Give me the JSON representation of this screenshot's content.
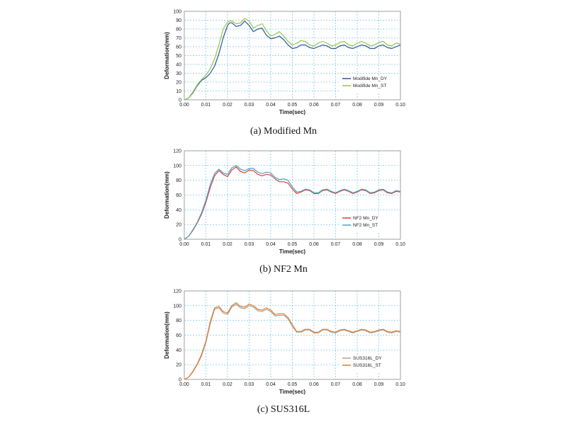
{
  "chart_data": [
    {
      "type": "line",
      "caption": "(a)  Modified  Mn",
      "xlabel": "Time(sec)",
      "ylabel": "Deformation(mm)",
      "xlim": [
        0,
        0.1
      ],
      "ylim": [
        0,
        100
      ],
      "xticks": [
        "0.00",
        "0.01",
        "0.02",
        "0.03",
        "0.04",
        "0.05",
        "0.06",
        "0.07",
        "0.08",
        "0.09",
        "0.10"
      ],
      "yticks": [
        "0",
        "10",
        "20",
        "30",
        "40",
        "50",
        "60",
        "70",
        "80",
        "90",
        "100"
      ],
      "grid": true,
      "legend": "bottom-right",
      "colors": [
        "#2f5597",
        "#92c44a"
      ],
      "series": [
        {
          "name": "Modifide Mn_DY",
          "color": "#2f5597",
          "x": [
            0,
            0.002,
            0.004,
            0.006,
            0.008,
            0.01,
            0.012,
            0.014,
            0.016,
            0.018,
            0.02,
            0.021,
            0.022,
            0.024,
            0.026,
            0.028,
            0.03,
            0.032,
            0.034,
            0.036,
            0.038,
            0.04,
            0.042,
            0.044,
            0.046,
            0.048,
            0.05,
            0.052,
            0.054,
            0.056,
            0.058,
            0.06,
            0.062,
            0.064,
            0.066,
            0.068,
            0.07,
            0.072,
            0.074,
            0.076,
            0.078,
            0.08,
            0.082,
            0.084,
            0.086,
            0.088,
            0.09,
            0.092,
            0.094,
            0.096,
            0.098,
            0.1
          ],
          "y": [
            0,
            2,
            8,
            16,
            22,
            25,
            30,
            38,
            52,
            70,
            84,
            87,
            87,
            83,
            84,
            89,
            84,
            77,
            80,
            81,
            73,
            69,
            70,
            72,
            68,
            62,
            58,
            59,
            62,
            62,
            59,
            58,
            60,
            62,
            61,
            58,
            58,
            61,
            62,
            59,
            58,
            60,
            62,
            61,
            58,
            58,
            61,
            62,
            59,
            58,
            60,
            62
          ]
        },
        {
          "name": "Modifide Mn_ST",
          "color": "#92c44a",
          "x": [
            0,
            0.002,
            0.004,
            0.006,
            0.008,
            0.01,
            0.012,
            0.014,
            0.016,
            0.018,
            0.02,
            0.021,
            0.022,
            0.024,
            0.026,
            0.028,
            0.03,
            0.032,
            0.034,
            0.036,
            0.038,
            0.04,
            0.042,
            0.044,
            0.046,
            0.048,
            0.05,
            0.052,
            0.054,
            0.056,
            0.058,
            0.06,
            0.062,
            0.064,
            0.066,
            0.068,
            0.07,
            0.072,
            0.074,
            0.076,
            0.078,
            0.08,
            0.082,
            0.084,
            0.086,
            0.088,
            0.09,
            0.092,
            0.094,
            0.096,
            0.098,
            0.1
          ],
          "y": [
            0,
            2,
            9,
            17,
            23,
            28,
            35,
            46,
            62,
            80,
            88,
            89,
            89,
            86,
            87,
            92,
            89,
            81,
            84,
            86,
            78,
            72,
            74,
            77,
            72,
            66,
            62,
            64,
            67,
            66,
            62,
            61,
            64,
            66,
            64,
            61,
            62,
            65,
            66,
            62,
            61,
            64,
            66,
            64,
            61,
            62,
            65,
            66,
            62,
            61,
            64,
            63
          ]
        }
      ]
    },
    {
      "type": "line",
      "caption": "(b)  NF2  Mn",
      "xlabel": "Time(sec)",
      "ylabel": "Deformation(mm)",
      "xlim": [
        0,
        0.1
      ],
      "ylim": [
        0,
        120
      ],
      "xticks": [
        "0.00",
        "0.01",
        "0.02",
        "0.03",
        "0.04",
        "0.05",
        "0.06",
        "0.07",
        "0.08",
        "0.09",
        "0.10"
      ],
      "yticks": [
        "0",
        "20",
        "40",
        "60",
        "80",
        "100",
        "120"
      ],
      "grid": true,
      "legend": "bottom-right",
      "colors": [
        "#d9413d",
        "#4ba3c7"
      ],
      "series": [
        {
          "name": "NF2 Mn_DY",
          "color": "#d9413d",
          "x": [
            0,
            0.002,
            0.004,
            0.006,
            0.008,
            0.01,
            0.012,
            0.014,
            0.016,
            0.018,
            0.02,
            0.022,
            0.024,
            0.026,
            0.028,
            0.03,
            0.032,
            0.034,
            0.036,
            0.038,
            0.04,
            0.042,
            0.044,
            0.046,
            0.048,
            0.05,
            0.052,
            0.054,
            0.056,
            0.058,
            0.06,
            0.062,
            0.064,
            0.066,
            0.068,
            0.07,
            0.072,
            0.074,
            0.076,
            0.078,
            0.08,
            0.082,
            0.084,
            0.086,
            0.088,
            0.09,
            0.092,
            0.094,
            0.096,
            0.098,
            0.1
          ],
          "y": [
            0,
            4,
            12,
            22,
            34,
            50,
            70,
            86,
            93,
            88,
            85,
            94,
            98,
            92,
            90,
            94,
            93,
            88,
            86,
            88,
            87,
            82,
            78,
            78,
            76,
            68,
            62,
            64,
            67,
            66,
            62,
            62,
            66,
            67,
            64,
            62,
            65,
            67,
            65,
            62,
            64,
            67,
            66,
            62,
            63,
            66,
            67,
            63,
            62,
            65,
            64
          ]
        },
        {
          "name": "NF2 Mn_ST",
          "color": "#4ba3c7",
          "x": [
            0,
            0.002,
            0.004,
            0.006,
            0.008,
            0.01,
            0.012,
            0.014,
            0.016,
            0.018,
            0.02,
            0.022,
            0.024,
            0.026,
            0.028,
            0.03,
            0.032,
            0.034,
            0.036,
            0.038,
            0.04,
            0.042,
            0.044,
            0.046,
            0.048,
            0.05,
            0.052,
            0.054,
            0.056,
            0.058,
            0.06,
            0.062,
            0.064,
            0.066,
            0.068,
            0.07,
            0.072,
            0.074,
            0.076,
            0.078,
            0.08,
            0.082,
            0.084,
            0.086,
            0.088,
            0.09,
            0.092,
            0.094,
            0.096,
            0.098,
            0.1
          ],
          "y": [
            0,
            4,
            13,
            23,
            36,
            53,
            74,
            89,
            95,
            90,
            88,
            97,
            100,
            95,
            93,
            96,
            96,
            91,
            89,
            91,
            90,
            84,
            81,
            82,
            80,
            71,
            64,
            65,
            68,
            67,
            63,
            63,
            67,
            68,
            65,
            63,
            66,
            68,
            66,
            63,
            65,
            68,
            67,
            63,
            64,
            67,
            68,
            64,
            63,
            66,
            65
          ]
        }
      ]
    },
    {
      "type": "line",
      "caption": "(c)  SUS316L",
      "xlabel": "Time(sec)",
      "ylabel": "Deformation(mm)",
      "xlim": [
        0,
        0.1
      ],
      "ylim": [
        0,
        120
      ],
      "xticks": [
        "0.00",
        "0.01",
        "0.02",
        "0.03",
        "0.04",
        "0.05",
        "0.06",
        "0.07",
        "0.08",
        "0.09",
        "0.10"
      ],
      "yticks": [
        "0",
        "20",
        "40",
        "60",
        "80",
        "100",
        "120"
      ],
      "grid": true,
      "legend": "bottom-right",
      "colors": [
        "#a6a6a6",
        "#e07b2a"
      ],
      "series": [
        {
          "name": "SUS316L_DY",
          "color": "#a6a6a6",
          "x": [
            0,
            0.002,
            0.004,
            0.006,
            0.008,
            0.01,
            0.012,
            0.014,
            0.016,
            0.018,
            0.02,
            0.022,
            0.024,
            0.026,
            0.028,
            0.03,
            0.032,
            0.034,
            0.036,
            0.038,
            0.04,
            0.042,
            0.044,
            0.046,
            0.048,
            0.05,
            0.052,
            0.054,
            0.056,
            0.058,
            0.06,
            0.062,
            0.064,
            0.066,
            0.068,
            0.07,
            0.072,
            0.074,
            0.076,
            0.078,
            0.08,
            0.082,
            0.084,
            0.086,
            0.088,
            0.09,
            0.092,
            0.094,
            0.096,
            0.098,
            0.1
          ],
          "y": [
            0,
            3,
            10,
            20,
            32,
            50,
            75,
            95,
            97,
            90,
            88,
            98,
            102,
            97,
            96,
            100,
            98,
            93,
            92,
            95,
            92,
            86,
            87,
            87,
            82,
            72,
            64,
            64,
            67,
            67,
            63,
            63,
            67,
            67,
            64,
            63,
            66,
            67,
            65,
            63,
            65,
            67,
            66,
            63,
            64,
            66,
            67,
            64,
            63,
            65,
            64
          ]
        },
        {
          "name": "SUS316L_ST",
          "color": "#e07b2a",
          "x": [
            0,
            0.002,
            0.004,
            0.006,
            0.008,
            0.01,
            0.012,
            0.014,
            0.016,
            0.018,
            0.02,
            0.022,
            0.024,
            0.026,
            0.028,
            0.03,
            0.032,
            0.034,
            0.036,
            0.038,
            0.04,
            0.042,
            0.044,
            0.046,
            0.048,
            0.05,
            0.052,
            0.054,
            0.056,
            0.058,
            0.06,
            0.062,
            0.064,
            0.066,
            0.068,
            0.07,
            0.072,
            0.074,
            0.076,
            0.078,
            0.08,
            0.082,
            0.084,
            0.086,
            0.088,
            0.09,
            0.092,
            0.094,
            0.096,
            0.098,
            0.1
          ],
          "y": [
            0,
            3,
            11,
            21,
            34,
            52,
            78,
            97,
            99,
            92,
            90,
            100,
            104,
            99,
            98,
            102,
            100,
            95,
            94,
            97,
            94,
            88,
            89,
            89,
            84,
            74,
            65,
            65,
            68,
            68,
            64,
            64,
            68,
            68,
            65,
            64,
            67,
            68,
            66,
            64,
            66,
            68,
            67,
            64,
            65,
            67,
            68,
            65,
            64,
            66,
            65
          ]
        }
      ]
    }
  ]
}
